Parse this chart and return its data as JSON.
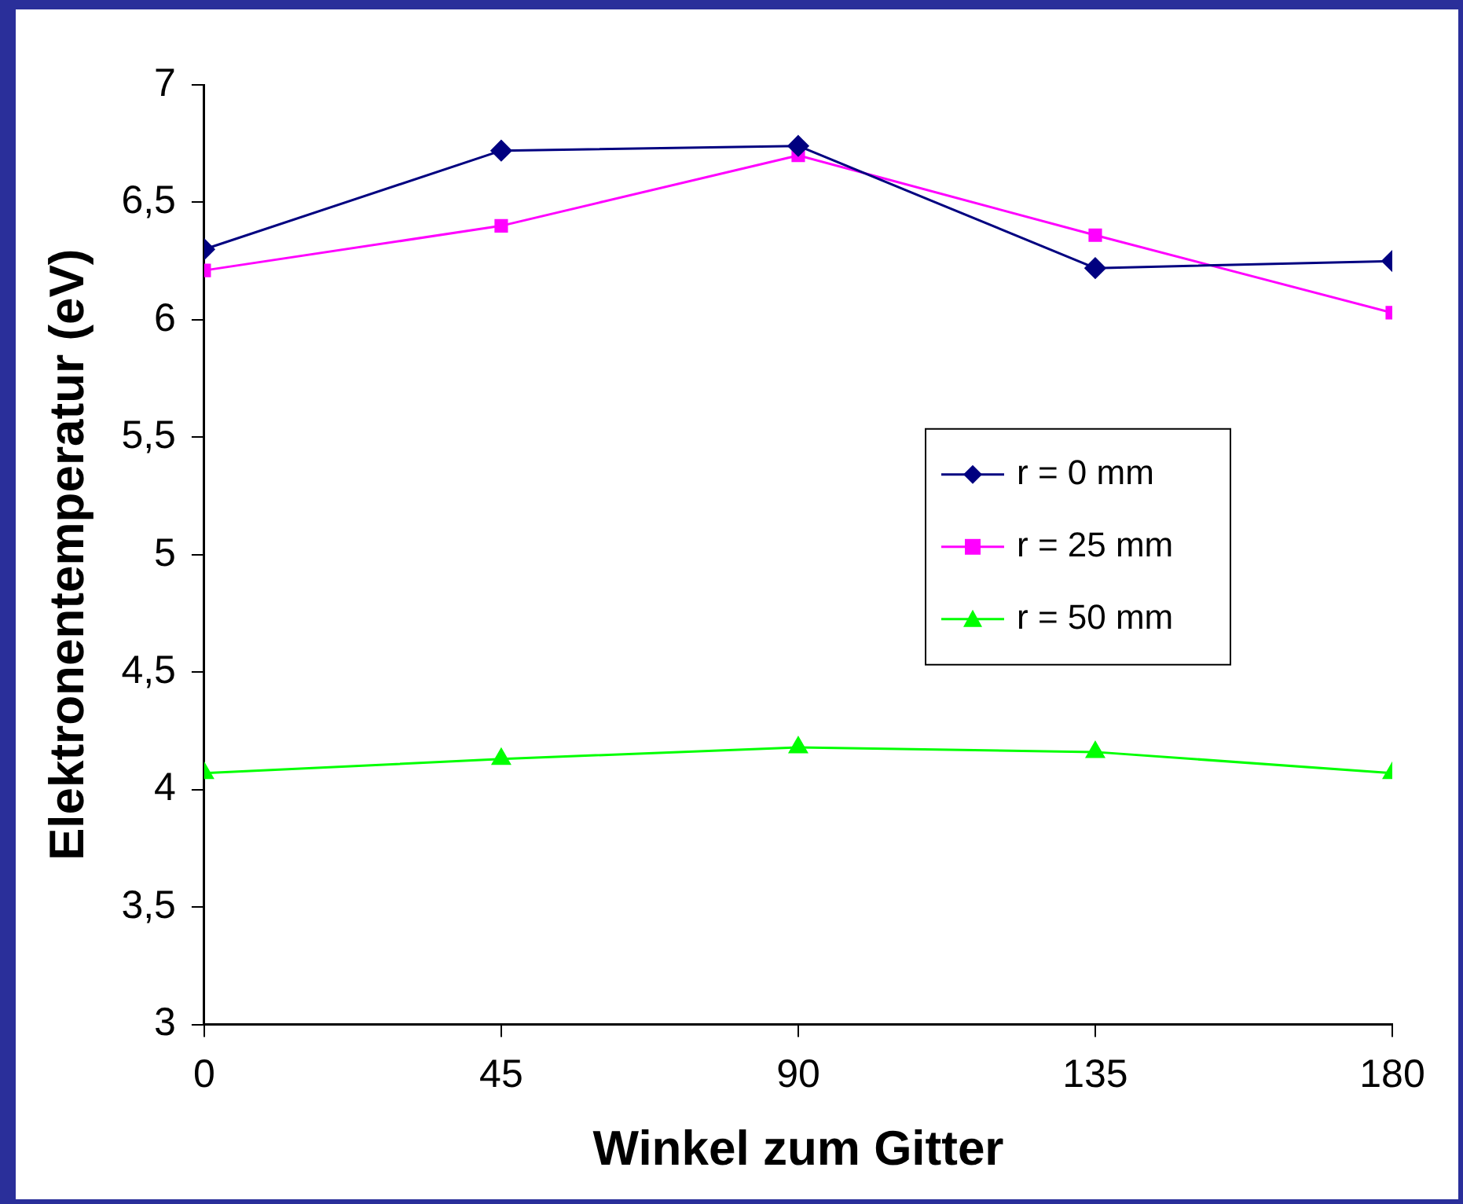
{
  "chart_data": {
    "type": "line",
    "xlabel": "Winkel zum Gitter",
    "ylabel": "Elektronentemperatur (eV)",
    "x": [
      0,
      45,
      90,
      135,
      180
    ],
    "xlim": [
      0,
      180
    ],
    "xticks": [
      0,
      45,
      90,
      135,
      180
    ],
    "ylim": [
      3,
      7
    ],
    "yticks": [
      3,
      {
        "value": 3.5,
        "label": "3,5"
      },
      4,
      {
        "value": 4.5,
        "label": "4,5"
      },
      5,
      {
        "value": 5.5,
        "label": "5,5"
      },
      6,
      {
        "value": 6.5,
        "label": "6,5"
      },
      7
    ],
    "grid": false,
    "legend": "right",
    "line_style": "solid",
    "series": [
      {
        "name": "r = 0 mm",
        "color": "#000080",
        "marker": "diamond",
        "values": [
          6.3,
          6.72,
          6.74,
          6.22,
          6.25
        ]
      },
      {
        "name": "r = 25 mm",
        "color": "#ff00ff",
        "marker": "square",
        "values": [
          6.21,
          6.4,
          6.7,
          6.36,
          6.03
        ]
      },
      {
        "name": "r = 50 mm",
        "color": "#00ff00",
        "marker": "triangle",
        "values": [
          4.07,
          4.13,
          4.18,
          4.16,
          4.07
        ]
      }
    ]
  }
}
